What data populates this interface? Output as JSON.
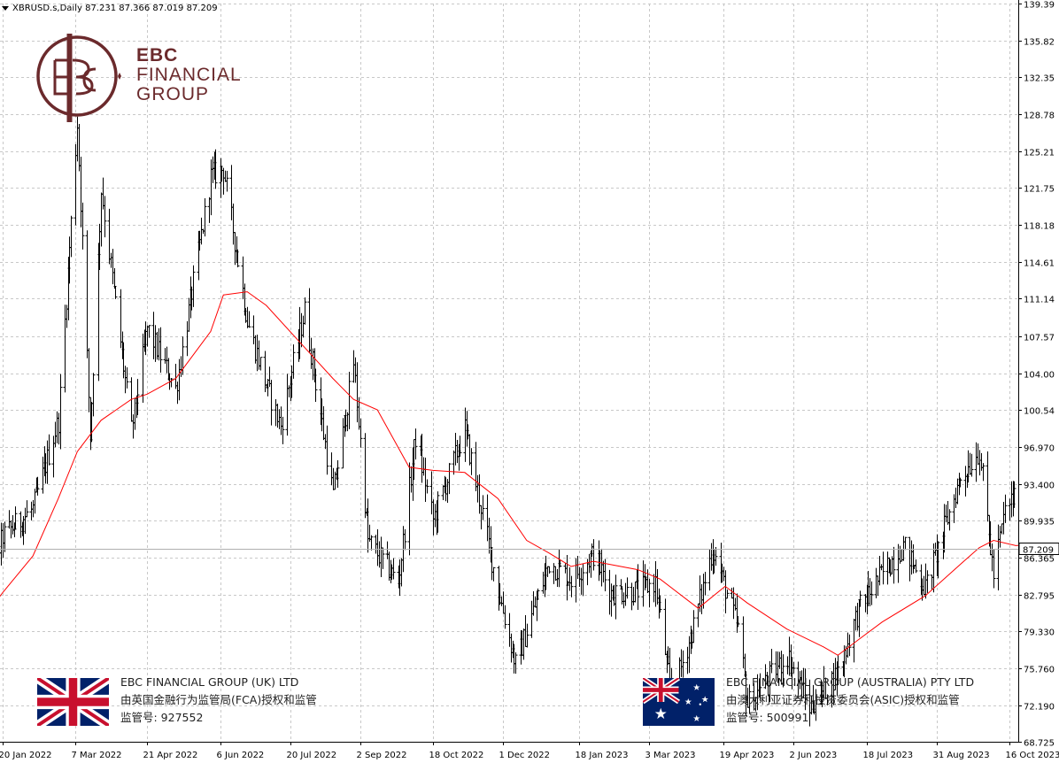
{
  "header": {
    "symbol_line": "XBRUSD.s,Daily  87.231 87.366 87.019 87.209"
  },
  "logo": {
    "line1": "EBC",
    "line2": "FINANCIAL",
    "line3": "GROUP"
  },
  "entities": {
    "uk": {
      "name": "EBC FINANCIAL GROUP (UK) LTD",
      "regulator": "由英国金融行为监管局(FCA)授权和监管",
      "license": "监管号: 927552"
    },
    "au": {
      "name": "EBC FINANCIAL GROUP (AUSTRALIA) PTY LTD",
      "regulator": "由澳大利亚证券和投资委员会(ASIC)授权和监管",
      "license": "监管号: 500991"
    }
  },
  "colors": {
    "brand": "#6b2a2c",
    "ma_line": "#ff0000",
    "bars": "#000000",
    "grid": "#c8c8c8"
  },
  "chart_data": {
    "type": "ohlc",
    "symbol": "XBRUSD.s",
    "timeframe": "Daily",
    "last_price": "87.209",
    "ylim": [
      68.725,
      139.39
    ],
    "y_ticks": [
      "139.39",
      "135.82",
      "132.35",
      "128.78",
      "125.21",
      "121.75",
      "118.18",
      "114.61",
      "111.14",
      "107.57",
      "104.00",
      "100.54",
      "96.970",
      "93.400",
      "89.935",
      "86.365",
      "82.795",
      "79.330",
      "75.760",
      "72.190",
      "68.725"
    ],
    "x_ticks": [
      "20 Jan 2022",
      "7 Mar 2022",
      "21 Apr 2022",
      "6 Jun 2022",
      "20 Jul 2022",
      "2 Sep 2022",
      "18 Oct 2022",
      "1 Dec 2022",
      "18 Jan 2023",
      "3 Mar 2023",
      "19 Apr 2023",
      "2 Jun 2023",
      "18 Jul 2023",
      "31 Aug 2023",
      "16 Oct 2023"
    ],
    "close_path": [
      [
        "2022-01-03",
        78.5
      ],
      [
        "2022-01-20",
        88.4
      ],
      [
        "2022-02-08",
        91.0
      ],
      [
        "2022-02-24",
        99.5
      ],
      [
        "2022-03-08",
        127.9
      ],
      [
        "2022-03-16",
        98.0
      ],
      [
        "2022-03-23",
        121.6
      ],
      [
        "2022-04-11",
        98.5
      ],
      [
        "2022-04-21",
        108.3
      ],
      [
        "2022-05-09",
        102.5
      ],
      [
        "2022-05-31",
        122.8
      ],
      [
        "2022-06-08",
        123.6
      ],
      [
        "2022-06-23",
        109.0
      ],
      [
        "2022-07-05",
        102.8
      ],
      [
        "2022-07-14",
        99.0
      ],
      [
        "2022-07-29",
        110.0
      ],
      [
        "2022-08-16",
        92.3
      ],
      [
        "2022-08-29",
        105.0
      ],
      [
        "2022-09-07",
        88.0
      ],
      [
        "2022-09-26",
        84.0
      ],
      [
        "2022-10-07",
        97.9
      ],
      [
        "2022-10-18",
        90.0
      ],
      [
        "2022-11-07",
        98.6
      ],
      [
        "2022-11-28",
        83.2
      ],
      [
        "2022-12-09",
        76.1
      ],
      [
        "2022-12-30",
        85.9
      ],
      [
        "2023-01-13",
        84.3
      ],
      [
        "2023-01-27",
        86.7
      ],
      [
        "2023-02-07",
        83.0
      ],
      [
        "2023-02-24",
        83.2
      ],
      [
        "2023-03-07",
        84.0
      ],
      [
        "2023-03-17",
        72.9
      ],
      [
        "2023-03-31",
        79.8
      ],
      [
        "2023-04-12",
        87.3
      ],
      [
        "2023-04-28",
        79.5
      ],
      [
        "2023-05-04",
        72.3
      ],
      [
        "2023-05-29",
        77.0
      ],
      [
        "2023-06-12",
        72.0
      ],
      [
        "2023-06-30",
        75.4
      ],
      [
        "2023-07-13",
        81.4
      ],
      [
        "2023-07-28",
        84.9
      ],
      [
        "2023-08-10",
        87.5
      ],
      [
        "2023-08-24",
        83.4
      ],
      [
        "2023-09-15",
        94.0
      ],
      [
        "2023-09-27",
        96.6
      ],
      [
        "2023-10-06",
        84.6
      ],
      [
        "2023-10-13",
        90.9
      ],
      [
        "2023-10-20",
        92.4
      ],
      [
        "2023-10-30",
        87.2
      ]
    ],
    "ma_path": [
      [
        "2022-01-03",
        79.5
      ],
      [
        "2022-01-20",
        83.0
      ],
      [
        "2022-02-08",
        86.5
      ],
      [
        "2022-02-24",
        92.0
      ],
      [
        "2022-03-08",
        96.5
      ],
      [
        "2022-03-23",
        99.5
      ],
      [
        "2022-04-11",
        101.5
      ],
      [
        "2022-04-21",
        102.0
      ],
      [
        "2022-05-09",
        103.5
      ],
      [
        "2022-05-31",
        108.0
      ],
      [
        "2022-06-08",
        111.5
      ],
      [
        "2022-06-23",
        111.8
      ],
      [
        "2022-07-05",
        110.5
      ],
      [
        "2022-07-29",
        106.5
      ],
      [
        "2022-08-16",
        103.5
      ],
      [
        "2022-08-29",
        101.5
      ],
      [
        "2022-09-13",
        100.5
      ],
      [
        "2022-10-03",
        95.0
      ],
      [
        "2022-10-18",
        94.7
      ],
      [
        "2022-11-07",
        94.5
      ],
      [
        "2022-11-28",
        92.0
      ],
      [
        "2022-12-16",
        88.0
      ],
      [
        "2022-12-30",
        86.8
      ],
      [
        "2023-01-13",
        85.5
      ],
      [
        "2023-01-27",
        86.0
      ],
      [
        "2023-02-24",
        85.2
      ],
      [
        "2023-03-10",
        84.3
      ],
      [
        "2023-04-03",
        81.5
      ],
      [
        "2023-04-20",
        83.6
      ],
      [
        "2023-05-04",
        82.0
      ],
      [
        "2023-05-29",
        79.5
      ],
      [
        "2023-06-21",
        77.8
      ],
      [
        "2023-06-30",
        77.0
      ],
      [
        "2023-07-13",
        78.5
      ],
      [
        "2023-07-28",
        80.2
      ],
      [
        "2023-08-24",
        82.7
      ],
      [
        "2023-09-15",
        85.7
      ],
      [
        "2023-09-27",
        87.3
      ],
      [
        "2023-10-06",
        88.0
      ],
      [
        "2023-10-20",
        87.5
      ],
      [
        "2023-10-30",
        87.6
      ]
    ]
  }
}
